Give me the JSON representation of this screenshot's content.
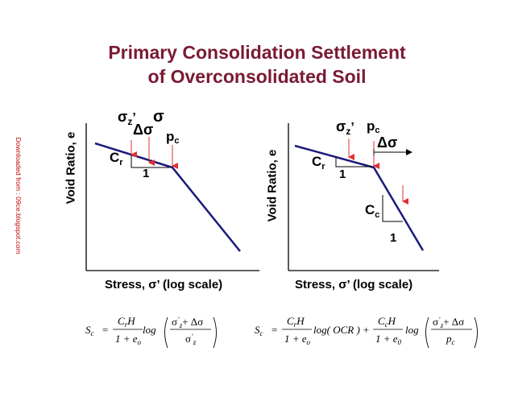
{
  "watermark": "Downloaded from : 09ce.blogspot.com",
  "title": {
    "line1": "Primary Consolidation Settlement",
    "line2": "of Overconsolidated Soil"
  },
  "left_panel": {
    "ylabel": "Void Ratio, e",
    "xlabel": "Stress, σ’ (log scale)",
    "sigma_z": "σ",
    "sigma_z_sub": "z",
    "sigma_z_prime": "’",
    "sigma": "σ",
    "delta_sigma": "Δσ",
    "pc": "p",
    "pc_sub": "c",
    "cr": "C",
    "cr_sub": "r",
    "one": "1"
  },
  "right_panel": {
    "ylabel": "Void Ratio, e",
    "xlabel": "Stress, σ’ (log scale)",
    "sigma_z": "σ",
    "sigma_z_sub": "z",
    "sigma_z_prime": "’",
    "pc": "p",
    "pc_sub": "c",
    "delta_sigma": "Δσ",
    "cr": "C",
    "cr_sub": "r",
    "cr_one": "1",
    "cc": "C",
    "cc_sub": "c",
    "cc_one": "1"
  },
  "equation_left": {
    "lhs": "S",
    "lhs_sub": "c",
    "eq": "=",
    "num": "C",
    "num_sub": "r",
    "num_H": "H",
    "den": "1 + e",
    "den_sub": "o",
    "log": "log",
    "frac_num": "σ",
    "frac_num_sub": "z",
    "frac_num_tail": "+ Δσ",
    "frac_den": "σ",
    "frac_den_sub": "z",
    "prime": "’"
  },
  "equation_right": {
    "lhs": "S",
    "lhs_sub": "c",
    "eq": "=",
    "t1_num": "C",
    "t1_num_sub": "r",
    "t1_num_H": "H",
    "t1_den": "1 + e",
    "t1_den_sub": "o",
    "t1_log": "log( OCR ) +",
    "t2_num": "C",
    "t2_num_sub": "c",
    "t2_num_H": "H",
    "t2_den": "1 + e",
    "t2_den_sub": "0",
    "t2_log": "log",
    "frac_num": "σ",
    "frac_num_sub": "z",
    "frac_num_tail": "+ Δσ",
    "frac_den": "p",
    "frac_den_sub": "c",
    "prime": "’"
  },
  "colors": {
    "title": "#7a1a35",
    "curve": "#1a1a7a",
    "arrow": "#e03030",
    "text": "#000000",
    "watermark": "#c00000"
  }
}
